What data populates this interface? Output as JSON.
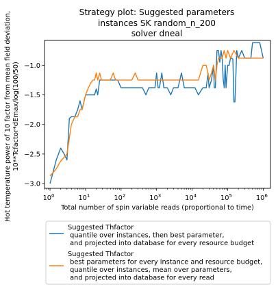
{
  "chart_data": {
    "type": "line",
    "title": [
      "Strategy plot: Suggested parameters",
      "instances SK random_n_200",
      "solver dneal"
    ],
    "xlabel": "Total number of spin variable reads (proportional to time)",
    "ylabel": [
      "Hot temperature power of 10 factor from mean field deviation,",
      "10**Tcfactor*dEmax/log(100/50)"
    ],
    "xscale": "log",
    "xlim": [
      0.7,
      1600000
    ],
    "ylim": [
      -3.08,
      -0.58
    ],
    "xtick_labels": [
      {
        "value": 1,
        "base": "10",
        "exp": "0"
      },
      {
        "value": 10,
        "base": "10",
        "exp": "1"
      },
      {
        "value": 100,
        "base": "10",
        "exp": "2"
      },
      {
        "value": 1000,
        "base": "10",
        "exp": "3"
      },
      {
        "value": 10000,
        "base": "10",
        "exp": "4"
      },
      {
        "value": 100000,
        "base": "10",
        "exp": "5"
      },
      {
        "value": 1000000,
        "base": "10",
        "exp": "6"
      }
    ],
    "ytick_labels": [
      {
        "value": -3.0,
        "label": "−3.0"
      },
      {
        "value": -2.5,
        "label": "−2.5"
      },
      {
        "value": -2.0,
        "label": "−2.0"
      },
      {
        "value": -1.5,
        "label": "−1.5"
      },
      {
        "value": -1.0,
        "label": "−1.0"
      }
    ],
    "grid": false,
    "legend_position": "below plot",
    "series": [
      {
        "name": "Suggested Thfactor\n quantile over instances, then best parameter,\n and projected into database for every resource budget",
        "color": "#1f77b4",
        "x": [
          1,
          1.5,
          2,
          2.5,
          3,
          3.5,
          4,
          5,
          6,
          7,
          8,
          10,
          12,
          14,
          16,
          18,
          20,
          22,
          25,
          28,
          32,
          40,
          50,
          60,
          70,
          80,
          100,
          120,
          150,
          200,
          250,
          300,
          400,
          500,
          600,
          700,
          800,
          900,
          1000,
          1100,
          1200,
          1400,
          1600,
          2000,
          2500,
          3000,
          4000,
          5000,
          6000,
          7000,
          8000,
          9000,
          10000,
          11000,
          12000,
          15000,
          20000,
          25000,
          28000,
          30000,
          35000,
          40000,
          42000,
          45000,
          50000,
          55000,
          60000,
          65000,
          70000,
          75000,
          80000,
          85000,
          90000,
          100000,
          110000,
          120000,
          130000,
          140000,
          150000,
          160000,
          180000,
          200000,
          250000,
          300000,
          350000,
          400000,
          450000,
          500000,
          550000,
          600000,
          700000,
          800000,
          1000000
        ],
        "y": [
          -3.0,
          -2.6,
          -2.4,
          -2.5,
          -2.6,
          -1.9,
          -1.87,
          -1.87,
          -1.75,
          -1.6,
          -1.75,
          -1.5,
          -1.5,
          -1.5,
          -1.5,
          -1.5,
          -1.4,
          -1.5,
          -1.25,
          -1.25,
          -1.25,
          -1.25,
          -1.25,
          -1.25,
          -1.25,
          -1.25,
          -1.38,
          -1.38,
          -1.38,
          -1.38,
          -1.38,
          -1.38,
          -1.38,
          -1.5,
          -1.38,
          -1.38,
          -1.38,
          -1.38,
          -1.13,
          -1.38,
          -1.38,
          -1.13,
          -1.38,
          -1.38,
          -1.5,
          -1.38,
          -1.38,
          -1.13,
          -1.38,
          -1.38,
          -1.38,
          -1.38,
          -1.38,
          -1.38,
          -1.38,
          -1.5,
          -1.38,
          -1.38,
          -1.13,
          -1.38,
          -1.25,
          -1.0,
          -1.38,
          -1.38,
          -0.75,
          -0.75,
          -0.95,
          -0.75,
          -0.88,
          -1.25,
          -1.38,
          -1.0,
          -1.38,
          -1.0,
          -1.0,
          -0.88,
          -0.88,
          -0.9,
          -1.62,
          -1.62,
          -0.75,
          -0.88,
          -0.75,
          -0.88,
          -0.88,
          -0.88,
          -0.88,
          -0.62,
          -0.62,
          -0.62,
          -0.62,
          -0.62,
          -0.88
        ]
      },
      {
        "name": "Suggested Thfactor\n best parameters for every instance and resource budget,\n quantile over instances, mean over parameters,\n and projected into database for every read",
        "color": "#ff7f0e",
        "x": [
          1,
          1.5,
          2,
          3,
          4,
          5,
          6,
          7,
          8,
          9,
          10,
          12,
          14,
          16,
          18,
          20,
          22,
          25,
          28,
          32,
          36,
          40,
          50,
          60,
          70,
          80,
          100,
          120,
          150,
          200,
          250,
          300,
          400,
          500,
          700,
          1000,
          1200,
          1500,
          2000,
          3000,
          5000,
          7000,
          10000,
          15000,
          20000,
          25000,
          30000,
          35000,
          40000,
          45000,
          50000,
          55000,
          60000,
          70000,
          80000,
          90000,
          100000,
          120000,
          150000,
          200000,
          250000,
          300000,
          400000,
          500000,
          600000,
          800000,
          1000000
        ],
        "y": [
          -2.87,
          -2.75,
          -2.62,
          -2.5,
          -2.0,
          -1.87,
          -1.87,
          -1.75,
          -1.75,
          -1.62,
          -1.5,
          -1.38,
          -1.3,
          -1.25,
          -1.25,
          -1.13,
          -1.25,
          -1.13,
          -1.25,
          -1.25,
          -1.25,
          -1.25,
          -1.25,
          -1.13,
          -1.25,
          -1.25,
          -1.25,
          -1.25,
          -1.25,
          -1.25,
          -1.13,
          -1.25,
          -1.25,
          -1.25,
          -1.25,
          -1.25,
          -1.25,
          -1.25,
          -1.25,
          -1.25,
          -1.25,
          -1.25,
          -1.25,
          -1.25,
          -1.0,
          -1.0,
          -1.25,
          -1.13,
          -1.0,
          -1.25,
          -1.0,
          -0.88,
          -0.88,
          -0.88,
          -0.75,
          -0.88,
          -0.75,
          -0.88,
          -0.75,
          -0.88,
          -0.88,
          -0.88,
          -0.88,
          -0.88,
          -0.88,
          -0.88,
          -0.88
        ]
      }
    ]
  }
}
